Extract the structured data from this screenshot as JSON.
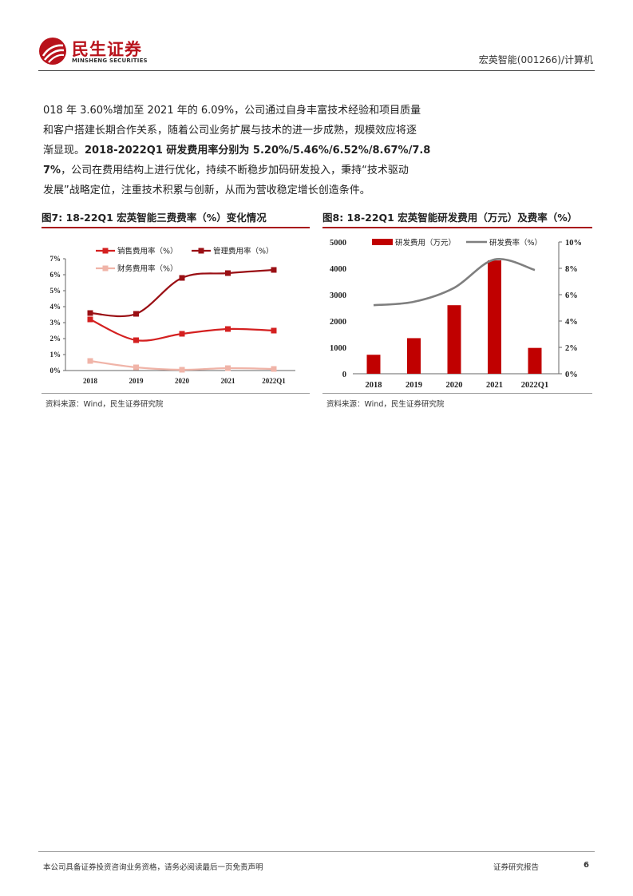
{
  "header": {
    "brand_cn": "民生证券",
    "brand_en": "MINSHENG SECURITIES",
    "doc_ref": "宏英智能(001266)/计算机",
    "brand_color": "#b8121b"
  },
  "body": {
    "line1": "018 年 3.60%增加至 2021 年的 6.09%，公司通过自身丰富技术经验和项目质量",
    "line2": "和客户搭建长期合作关系，随着公司业务扩展与技术的进一步成熟，规模效应将逐",
    "line3_plain": "渐显现。",
    "line3_bold": "2018-2022Q1 研发费用率分别为 5.20%/5.46%/6.52%/8.67%/7.8",
    "line4_bold": "7%",
    "line4_plain": "，公司在费用结构上进行优化，持续不断稳步加码研发投入，秉持“技术驱动",
    "line5": "发展”战略定位，注重技术积累与创新，从而为营收稳定增长创造条件。"
  },
  "figure7": {
    "title": "图7: 18-22Q1 宏英智能三费费率（%）变化情况",
    "source": "资料来源：Wind，民生证券研究院"
  },
  "figure8": {
    "title": "图8: 18-22Q1 宏英智能研发费用（万元）及费率（%）",
    "source": "资料来源：Wind，民生证券研究院"
  },
  "footer": {
    "disclaimer": "本公司具备证券投资咨询业务资格，请务必阅读最后一页免责声明",
    "report_type": "证券研究报告",
    "page": "6"
  },
  "chart_data": [
    {
      "type": "line",
      "categories": [
        "2018",
        "2019",
        "2020",
        "2021",
        "2022Q1"
      ],
      "ylim": [
        0,
        7
      ],
      "yticks": [
        "0%",
        "1%",
        "2%",
        "3%",
        "4%",
        "5%",
        "6%",
        "7%"
      ],
      "grid": false,
      "legend": "top",
      "series": [
        {
          "name": "销售费用率（%）",
          "values": [
            3.2,
            1.9,
            2.3,
            2.6,
            2.5
          ],
          "color": "#d42020"
        },
        {
          "name": "管理费用率（%）",
          "values": [
            3.6,
            3.55,
            5.8,
            6.1,
            6.3
          ],
          "color": "#9a0f14"
        },
        {
          "name": "财务费用率（%）",
          "values": [
            0.6,
            0.2,
            0.05,
            0.15,
            0.1
          ],
          "color": "#f0b4a8"
        }
      ]
    },
    {
      "type": "bar",
      "categories": [
        "2018",
        "2019",
        "2020",
        "2021",
        "2022Q1"
      ],
      "ylim": [
        0,
        5000
      ],
      "yticks": [
        "0",
        "1000",
        "2000",
        "3000",
        "4000",
        "5000"
      ],
      "y2lim": [
        0,
        10
      ],
      "y2ticks": [
        "0%",
        "2%",
        "4%",
        "6%",
        "8%",
        "10%"
      ],
      "grid": false,
      "legend": "top",
      "series": [
        {
          "name": "研发费用（万元）",
          "axis": "left",
          "type": "bar",
          "values": [
            720,
            1350,
            2600,
            4300,
            980
          ],
          "color": "#c00000"
        },
        {
          "name": "研发费率（%）",
          "axis": "right",
          "type": "line",
          "values": [
            5.2,
            5.46,
            6.52,
            8.67,
            7.87
          ],
          "color": "#7f7f7f"
        }
      ]
    }
  ]
}
